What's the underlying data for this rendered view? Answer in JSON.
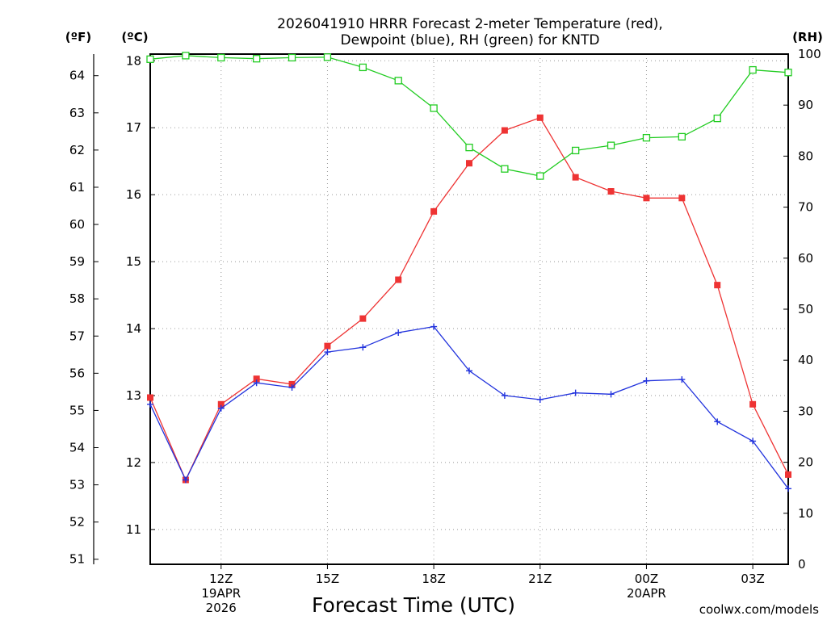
{
  "chart_data": {
    "type": "line",
    "title_line1": "2026041910 HRRR Forecast 2-meter Temperature (red),",
    "title_line2": "Dewpoint (blue), RH (green) for KNTD",
    "xlabel": "Forecast Time (UTC)",
    "units": {
      "fahrenheit": "(ºF)",
      "celsius": "(ºC)",
      "rh": "(RH)"
    },
    "credit": "coolwx.com/models",
    "colors": {
      "temperature": "#ee3333",
      "dewpoint": "#2233dd",
      "rh": "#22cc22",
      "grid": "#999999",
      "credit": "#dd2222"
    },
    "x_hours": [
      10,
      11,
      12,
      13,
      14,
      15,
      16,
      17,
      18,
      19,
      20,
      21,
      22,
      23,
      24,
      25,
      26,
      27,
      28
    ],
    "xlim": [
      10,
      28
    ],
    "x_ticks": [
      {
        "hour": 12,
        "label": "12Z",
        "sub1": "19APR",
        "sub2": "2026"
      },
      {
        "hour": 15,
        "label": "15Z",
        "sub1": "",
        "sub2": ""
      },
      {
        "hour": 18,
        "label": "18Z",
        "sub1": "",
        "sub2": ""
      },
      {
        "hour": 21,
        "label": "21Z",
        "sub1": "",
        "sub2": ""
      },
      {
        "hour": 24,
        "label": "00Z",
        "sub1": "20APR",
        "sub2": ""
      },
      {
        "hour": 27,
        "label": "03Z",
        "sub1": "",
        "sub2": ""
      }
    ],
    "celsius_axis": {
      "range": [
        10.48,
        18.1
      ],
      "ticks": [
        "11",
        "12",
        "13",
        "14",
        "15",
        "16",
        "17",
        "18"
      ]
    },
    "fahrenheit_axis": {
      "range": [
        50.864,
        64.58
      ],
      "ticks": [
        "51",
        "52",
        "53",
        "54",
        "55",
        "56",
        "57",
        "58",
        "59",
        "60",
        "61",
        "62",
        "63",
        "64"
      ]
    },
    "rh_axis": {
      "range": [
        0,
        100
      ],
      "ticks": [
        "0",
        "10",
        "20",
        "30",
        "40",
        "50",
        "60",
        "70",
        "80",
        "90",
        "100"
      ]
    },
    "series": [
      {
        "name": "Temperature",
        "axis": "celsius",
        "marker": "filled-square",
        "values": [
          12.97,
          11.74,
          12.87,
          13.25,
          13.17,
          13.74,
          14.15,
          14.73,
          15.75,
          16.47,
          16.96,
          17.15,
          16.26,
          16.05,
          15.95,
          15.95,
          14.65,
          12.87,
          11.82
        ]
      },
      {
        "name": "Dewpoint",
        "axis": "celsius",
        "marker": "plus",
        "values": [
          12.87,
          11.74,
          12.81,
          13.19,
          13.12,
          13.65,
          13.72,
          13.94,
          14.03,
          13.37,
          13.0,
          12.94,
          13.04,
          13.02,
          13.22,
          13.24,
          12.61,
          12.32,
          11.61
        ]
      },
      {
        "name": "RH",
        "axis": "rh",
        "marker": "open-square",
        "values": [
          99.0,
          99.7,
          99.3,
          99.1,
          99.3,
          99.4,
          97.4,
          94.8,
          89.4,
          81.7,
          77.5,
          76.1,
          81.1,
          82.1,
          83.6,
          83.8,
          87.4,
          96.9,
          96.4
        ]
      }
    ]
  }
}
